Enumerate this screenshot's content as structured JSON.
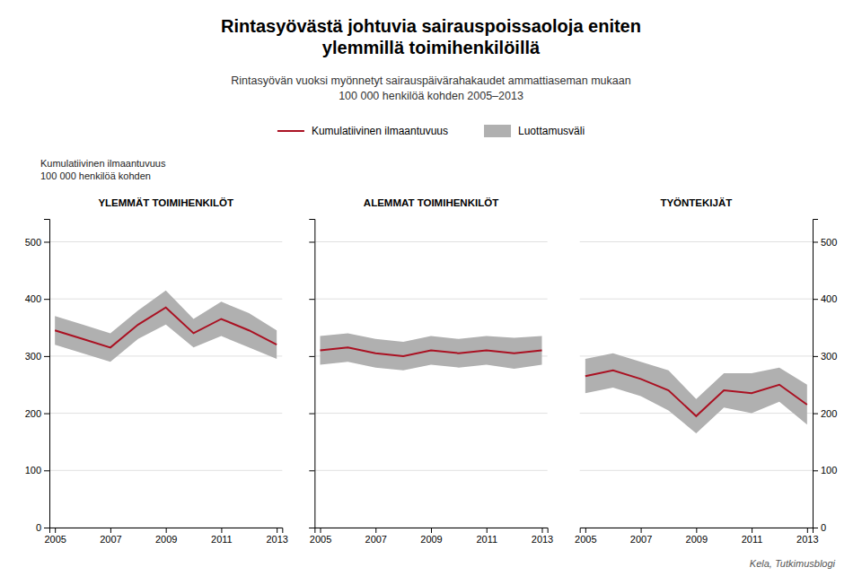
{
  "title": "Rintasyövästä johtuvia sairauspoissaoloja eniten\nylemmillä toimihenkilöillä",
  "subtitle": "Rintasyövän vuoksi myönnetyt sairauspäivärahakaudet ammattiaseman mukaan\n100 000 henkilöä kohden 2005–2013",
  "y_label": "Kumulatiivinen ilmaantuvuus\n100 000 henkilöä kohden",
  "source": "Kela, Tutkimusblogi",
  "chart_data": [
    {
      "type": "line",
      "title": "YLEMMÄT TOIMIHENKILÖT",
      "x": [
        2005,
        2006,
        2007,
        2008,
        2009,
        2010,
        2011,
        2012,
        2013
      ],
      "series": [
        {
          "name": "Kumulatiivinen ilmaantuvuus",
          "color": "#aa1122",
          "values": [
            345,
            330,
            315,
            355,
            385,
            340,
            365,
            345,
            320
          ]
        },
        {
          "name": "Luottamusväli",
          "type": "band",
          "color": "#b0b0b0",
          "upper": [
            370,
            355,
            340,
            380,
            415,
            365,
            395,
            375,
            345
          ],
          "lower": [
            320,
            305,
            290,
            330,
            355,
            315,
            335,
            315,
            295
          ]
        }
      ],
      "xlim": [
        2004.8,
        2013.2
      ],
      "xticks": [
        2005,
        2007,
        2009,
        2011,
        2013
      ],
      "ylim": [
        0,
        540
      ],
      "yticks": [
        0,
        100,
        200,
        300,
        400,
        500
      ],
      "grid": true,
      "legend": "top"
    },
    {
      "type": "line",
      "title": "ALEMMAT TOIMIHENKILÖT",
      "x": [
        2005,
        2006,
        2007,
        2008,
        2009,
        2010,
        2011,
        2012,
        2013
      ],
      "series": [
        {
          "name": "Kumulatiivinen ilmaantuvuus",
          "color": "#aa1122",
          "values": [
            310,
            315,
            305,
            300,
            310,
            305,
            310,
            305,
            310
          ]
        },
        {
          "name": "Luottamusväli",
          "type": "band",
          "color": "#b0b0b0",
          "upper": [
            335,
            340,
            330,
            325,
            335,
            330,
            335,
            332,
            335
          ],
          "lower": [
            285,
            290,
            280,
            275,
            285,
            280,
            285,
            278,
            285
          ]
        }
      ],
      "xlim": [
        2004.8,
        2013.2
      ],
      "xticks": [
        2005,
        2007,
        2009,
        2011,
        2013
      ],
      "ylim": [
        0,
        540
      ],
      "yticks": [
        0,
        100,
        200,
        300,
        400,
        500
      ],
      "grid": true,
      "tick_labels": "x"
    },
    {
      "type": "line",
      "title": "TYÖNTEKIJÄT",
      "x": [
        2005,
        2006,
        2007,
        2008,
        2009,
        2010,
        2011,
        2012,
        2013
      ],
      "series": [
        {
          "name": "Kumulatiivinen ilmaantuvuus",
          "color": "#aa1122",
          "values": [
            265,
            275,
            260,
            240,
            195,
            240,
            235,
            250,
            215
          ]
        },
        {
          "name": "Luottamusväli",
          "type": "band",
          "color": "#b0b0b0",
          "upper": [
            295,
            305,
            290,
            275,
            225,
            270,
            270,
            280,
            250
          ],
          "lower": [
            235,
            245,
            230,
            205,
            165,
            210,
            200,
            220,
            180
          ]
        }
      ],
      "xlim": [
        2004.8,
        2013.2
      ],
      "xticks": [
        2005,
        2007,
        2009,
        2011,
        2013
      ],
      "ylim": [
        0,
        540
      ],
      "yticks": [
        0,
        100,
        200,
        300,
        400,
        500
      ],
      "grid": true
    }
  ]
}
